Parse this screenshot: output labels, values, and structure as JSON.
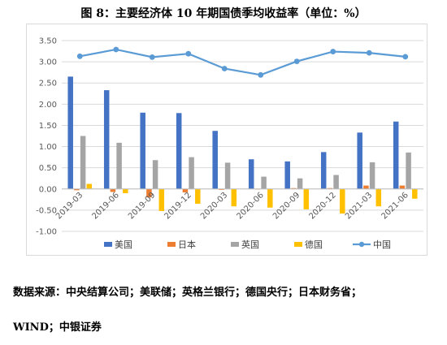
{
  "title": "图 8：主要经济体 10 年期国债季均收益率（单位：%）",
  "source_line1": "数据来源：中央结算公司；美联储；英格兰银行；德国央行；日本财务省；",
  "source_line2": "WIND；中银证券",
  "chart_data": {
    "type": "bar",
    "categories": [
      "2019-03",
      "2019-06",
      "2019-09",
      "2019-12",
      "2020-03",
      "2020-06",
      "2020-09",
      "2020-12",
      "2021-03",
      "2021-06"
    ],
    "series": [
      {
        "name": "美国",
        "type": "bar",
        "color": "#4472c4",
        "values": [
          2.65,
          2.33,
          1.8,
          1.79,
          1.37,
          0.7,
          0.65,
          0.87,
          1.33,
          1.59
        ]
      },
      {
        "name": "日本",
        "type": "bar",
        "color": "#ed7d31",
        "values": [
          -0.03,
          -0.07,
          -0.2,
          -0.08,
          -0.02,
          0.0,
          0.02,
          0.02,
          0.08,
          0.08
        ]
      },
      {
        "name": "英国",
        "type": "bar",
        "color": "#a5a5a5",
        "values": [
          1.25,
          1.09,
          0.68,
          0.75,
          0.62,
          0.29,
          0.25,
          0.33,
          0.63,
          0.86
        ]
      },
      {
        "name": "德国",
        "type": "bar",
        "color": "#ffc000",
        "values": [
          0.12,
          -0.1,
          -0.52,
          -0.35,
          -0.41,
          -0.44,
          -0.48,
          -0.58,
          -0.41,
          -0.23
        ]
      },
      {
        "name": "中国",
        "type": "line",
        "color": "#5b9bd5",
        "values": [
          3.13,
          3.29,
          3.11,
          3.19,
          2.84,
          2.69,
          3.01,
          3.24,
          3.21,
          3.12
        ]
      }
    ],
    "ylim": [
      -1.0,
      3.5
    ],
    "yticks": [
      "-1.00",
      "-0.50",
      "0.00",
      "0.50",
      "1.00",
      "1.50",
      "2.00",
      "2.50",
      "3.00",
      "3.50"
    ],
    "grid": true,
    "legend": "bottom"
  }
}
